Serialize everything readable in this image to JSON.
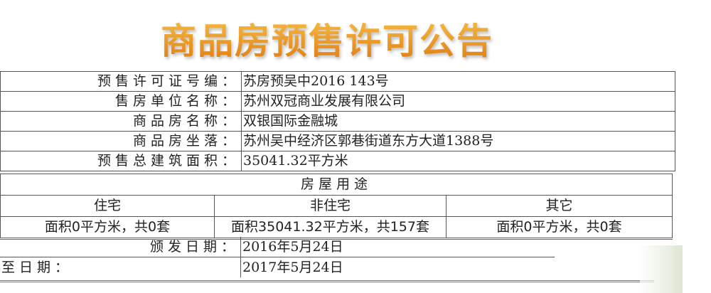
{
  "title": "商品房预售许可公告",
  "info": [
    {
      "label": "预售许可证号编：",
      "value": "苏房预吴中2016 143号"
    },
    {
      "label": "售房单位名称：",
      "value": "苏州双冠商业发展有限公司"
    },
    {
      "label": "商品房名称：",
      "value": "双银国际金融城"
    },
    {
      "label": "商品房坐落：",
      "value": "苏州吴中经济区郭巷街道东方大道1388号"
    },
    {
      "label": "预售总建筑面积：",
      "value": "35041.32平方米"
    }
  ],
  "usage": {
    "header": "房屋用途",
    "columns": [
      "住宅",
      "非住宅",
      "其它"
    ],
    "values": [
      "面积0平方米，共0套",
      "面积35041.32平方米，共157套",
      "面积0平方米，共0套"
    ]
  },
  "dates": [
    {
      "label": "颁发日期：",
      "value": "2016年5月24日"
    },
    {
      "label": "至日期：",
      "value": "2017年5月24日"
    }
  ]
}
